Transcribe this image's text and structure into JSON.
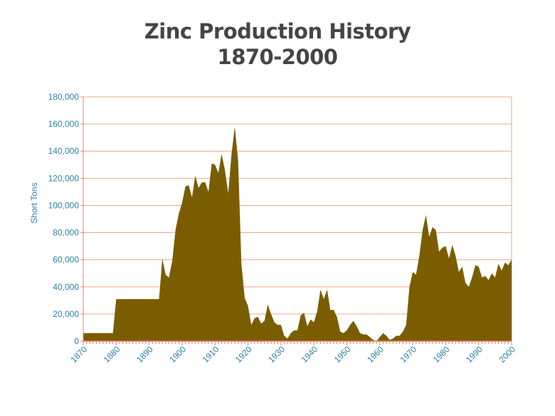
{
  "chart_data": {
    "type": "area",
    "title": "Zinc Production History",
    "subtitle": "1870-2000",
    "xlabel": "",
    "ylabel": "Short Tons",
    "xlim": [
      1870,
      2000
    ],
    "ylim": [
      0,
      180000
    ],
    "grid": true,
    "x_ticks": [
      "1870",
      "1880",
      "1890",
      "1900",
      "1910",
      "1920",
      "1930",
      "1940",
      "1950",
      "1960",
      "1970",
      "1980",
      "1990",
      "2000"
    ],
    "y_ticks": [
      "0",
      "20,000",
      "40,000",
      "60,000",
      "80,000",
      "100,000",
      "120,000",
      "140,000",
      "160,000",
      "180,000"
    ],
    "colors": {
      "area": "#7a5d00",
      "grid": "#f0a48c",
      "axis": "#e8826a",
      "text": "#2f7fa5"
    },
    "x": [
      1870,
      1879,
      1880,
      1893,
      1894,
      1895,
      1896,
      1897,
      1898,
      1899,
      1900,
      1901,
      1902,
      1903,
      1904,
      1905,
      1906,
      1907,
      1908,
      1909,
      1910,
      1911,
      1912,
      1913,
      1914,
      1915,
      1916,
      1917,
      1918,
      1919,
      1920,
      1921,
      1922,
      1923,
      1924,
      1925,
      1926,
      1927,
      1928,
      1929,
      1930,
      1931,
      1932,
      1933,
      1934,
      1935,
      1936,
      1937,
      1938,
      1939,
      1940,
      1941,
      1942,
      1943,
      1944,
      1945,
      1946,
      1947,
      1948,
      1949,
      1950,
      1951,
      1952,
      1953,
      1954,
      1955,
      1956,
      1957,
      1958,
      1959,
      1960,
      1961,
      1962,
      1963,
      1964,
      1965,
      1966,
      1967,
      1968,
      1969,
      1970,
      1971,
      1972,
      1973,
      1974,
      1975,
      1976,
      1977,
      1978,
      1979,
      1980,
      1981,
      1982,
      1983,
      1984,
      1985,
      1986,
      1987,
      1988,
      1989,
      1990,
      1991,
      1992,
      1993,
      1994,
      1995,
      1996,
      1997,
      1998,
      1999,
      2000
    ],
    "series": [
      {
        "values": [
          6000,
          6000,
          31000,
          31000,
          61000,
          49000,
          47000,
          59000,
          82000,
          94000,
          102000,
          114000,
          115000,
          106000,
          122000,
          113000,
          117000,
          117000,
          110000,
          131000,
          130000,
          124000,
          138000,
          126000,
          109000,
          138000,
          158000,
          133000,
          57000,
          32000,
          26000,
          12000,
          17000,
          18000,
          13000,
          15000,
          27000,
          20000,
          14000,
          12000,
          12000,
          4000,
          2000,
          6000,
          8000,
          8000,
          19000,
          21000,
          11000,
          16000,
          14000,
          22000,
          38000,
          31000,
          38000,
          23000,
          23000,
          18000,
          7000,
          6000,
          8000,
          12000,
          15000,
          11000,
          6000,
          5000,
          5000,
          3000,
          1000,
          0,
          3000,
          6000,
          4000,
          1000,
          2000,
          4000,
          4000,
          7000,
          12000,
          40000,
          51000,
          49000,
          63000,
          82000,
          93000,
          77000,
          84000,
          82000,
          66000,
          69000,
          70000,
          61000,
          71000,
          63000,
          51000,
          55000,
          43000,
          40000,
          47000,
          56000,
          55000,
          47000,
          48000,
          45000,
          50000,
          47000,
          57000,
          52000,
          58000,
          56000,
          60000
        ]
      }
    ]
  }
}
